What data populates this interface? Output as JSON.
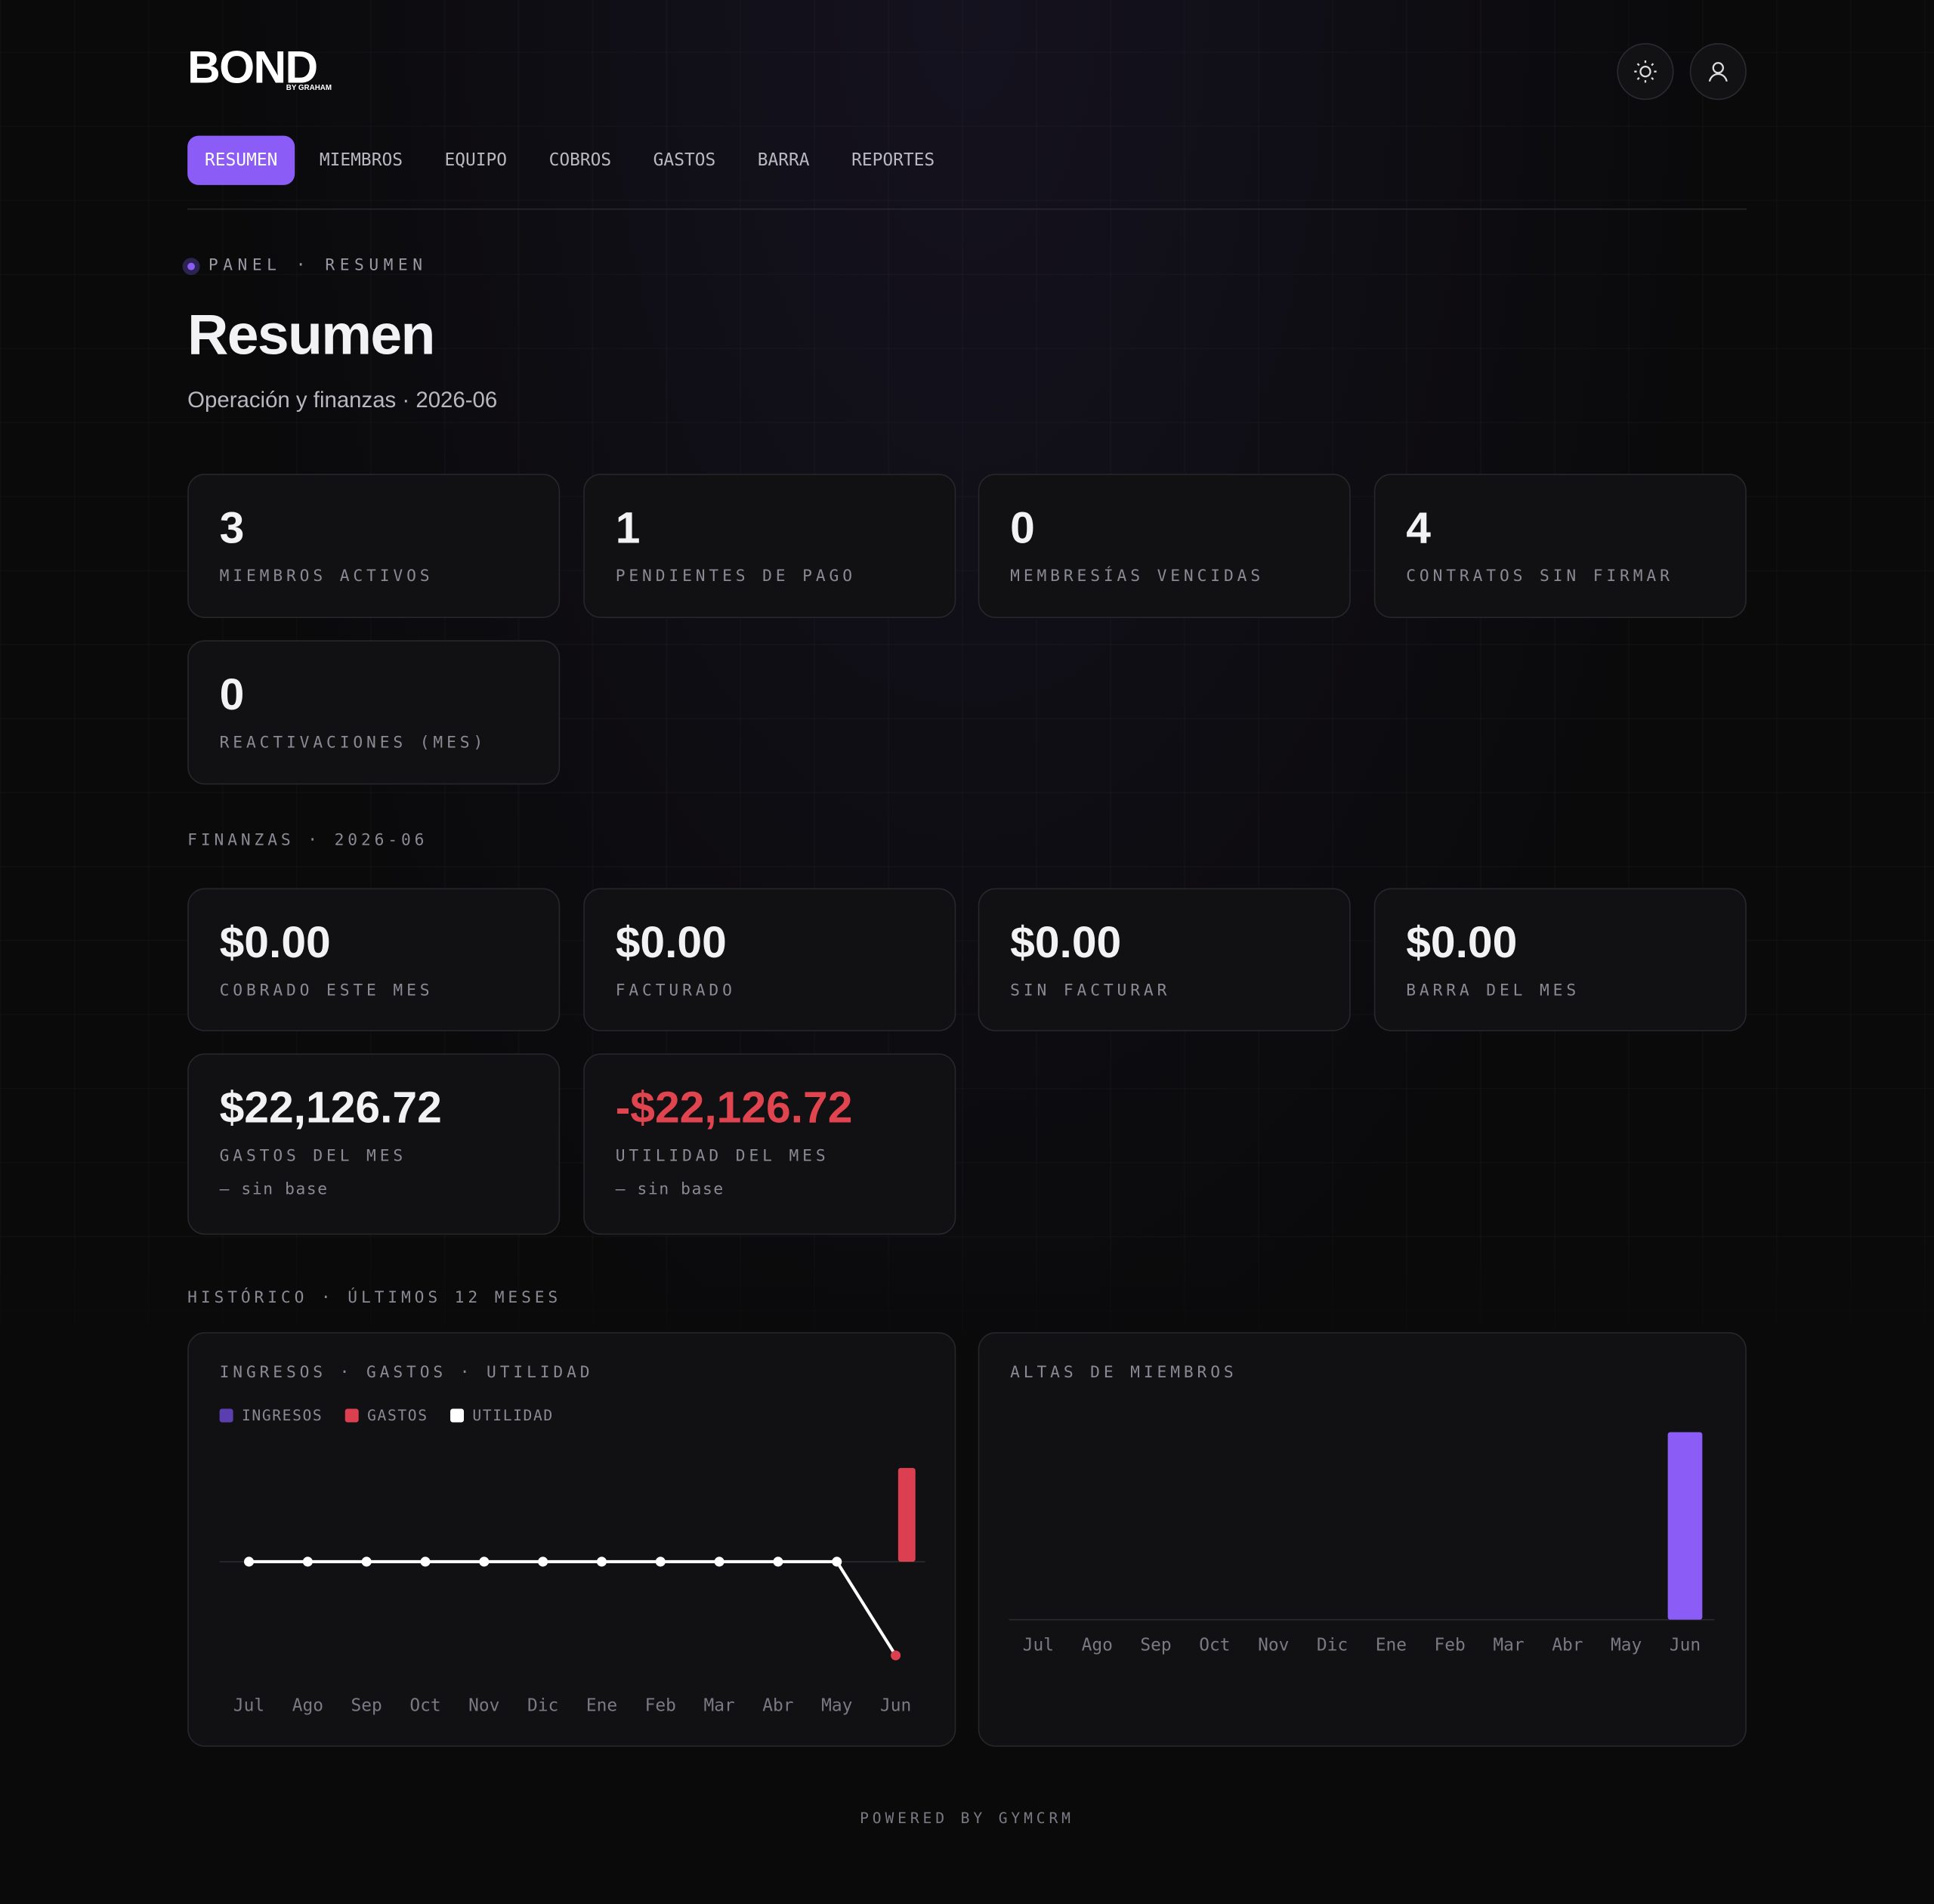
{
  "brand": {
    "name": "BOND",
    "tagline": "BY GRAHAM"
  },
  "nav": [
    "RESUMEN",
    "MIEMBROS",
    "EQUIPO",
    "COBROS",
    "GASTOS",
    "BARRA",
    "REPORTES"
  ],
  "breadcrumb": "PANEL · RESUMEN",
  "page_title": "Resumen",
  "subtitle": "Operación y finanzas · 2026-06",
  "stats": [
    {
      "value": 3,
      "label": "MIEMBROS ACTIVOS"
    },
    {
      "value": 1,
      "label": "PENDIENTES DE PAGO"
    },
    {
      "value": 0,
      "label": "MEMBRESÍAS VENCIDAS"
    },
    {
      "value": 4,
      "label": "CONTRATOS SIN FIRMAR"
    },
    {
      "value": 0,
      "label": "REACTIVACIONES (MES)"
    }
  ],
  "finance_heading": "FINANZAS · 2026-06",
  "finance": [
    {
      "value": "$0.00",
      "label": "COBRADO ESTE MES"
    },
    {
      "value": "$0.00",
      "label": "FACTURADO"
    },
    {
      "value": "$0.00",
      "label": "SIN FACTURAR"
    },
    {
      "value": "$0.00",
      "label": "BARRA DEL MES"
    },
    {
      "value": "$22,126.72",
      "label": "GASTOS DEL MES",
      "note": "— sin base"
    },
    {
      "value": "-$22,126.72",
      "label": "UTILIDAD DEL MES",
      "note": "— sin base",
      "color": "#e0454f"
    }
  ],
  "history_heading": "HISTÓRICO · ÚLTIMOS 12 MESES",
  "chart_data": [
    {
      "type": "combo",
      "title": "INGRESOS · GASTOS · UTILIDAD",
      "categories": [
        "Jul",
        "Ago",
        "Sep",
        "Oct",
        "Nov",
        "Dic",
        "Ene",
        "Feb",
        "Mar",
        "Abr",
        "May",
        "Jun"
      ],
      "ylim": [
        -30000,
        30000
      ],
      "series": [
        {
          "name": "INGRESOS",
          "type": "bar",
          "color": "#5b3fb0",
          "values": [
            0,
            0,
            0,
            0,
            0,
            0,
            0,
            0,
            0,
            0,
            0,
            0
          ]
        },
        {
          "name": "GASTOS",
          "type": "bar",
          "color": "#dc4050",
          "values": [
            0,
            0,
            0,
            0,
            0,
            0,
            0,
            0,
            0,
            0,
            0,
            22126.72
          ]
        },
        {
          "name": "UTILIDAD",
          "type": "line",
          "color": "#ffffff",
          "negative_color": "#dc4050",
          "values": [
            0,
            0,
            0,
            0,
            0,
            0,
            0,
            0,
            0,
            0,
            0,
            -22126.72
          ]
        }
      ]
    },
    {
      "type": "bar",
      "title": "ALTAS DE MIEMBROS",
      "categories": [
        "Jul",
        "Ago",
        "Sep",
        "Oct",
        "Nov",
        "Dic",
        "Ene",
        "Feb",
        "Mar",
        "Abr",
        "May",
        "Jun"
      ],
      "ylim": [
        0,
        3
      ],
      "color": "#8b5cf6",
      "values": [
        0,
        0,
        0,
        0,
        0,
        0,
        0,
        0,
        0,
        0,
        0,
        3
      ]
    }
  ],
  "footer": "POWERED BY GYMCRM"
}
